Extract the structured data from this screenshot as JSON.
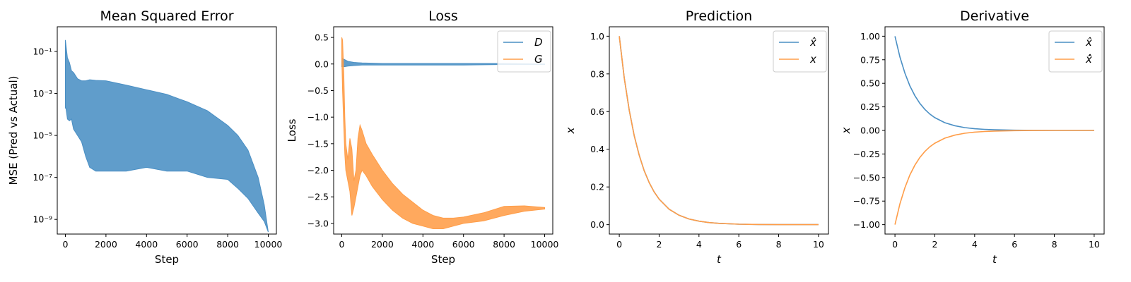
{
  "figure": {
    "colors": {
      "series1": "#4a8fc4",
      "series2": "#ff9d48"
    }
  },
  "chart_data": [
    {
      "id": "mse",
      "type": "line",
      "title": "Mean Squared Error",
      "xlabel": "Step",
      "ylabel": "MSE (Pred vs Actual)",
      "xlim": [
        -400,
        10400
      ],
      "ylim": [
        2e-10,
        1.5
      ],
      "yscale": "log",
      "xticks": [
        0,
        2000,
        4000,
        6000,
        8000,
        10000
      ],
      "xtick_labels": [
        "0",
        "2000",
        "4000",
        "6000",
        "8000",
        "10000"
      ],
      "yticks": [
        1e-09,
        1e-07,
        1e-05,
        0.001,
        0.1
      ],
      "ytick_labels": [
        "10⁻⁹",
        "10⁻⁷",
        "10⁻⁵",
        "10⁻³",
        "10⁻¹"
      ],
      "legend": null,
      "series": [
        {
          "color": "#4a8fc4",
          "style": "band",
          "x": [
            0,
            30,
            100,
            200,
            300,
            400,
            600,
            800,
            1000,
            1200,
            1500,
            2000,
            3000,
            4000,
            5000,
            6000,
            7000,
            8000,
            8500,
            9000,
            9500,
            9800,
            10000
          ],
          "upper": [
            0.35,
            0.2,
            0.05,
            0.03,
            0.012,
            0.01,
            0.005,
            0.004,
            0.004,
            0.0045,
            0.0042,
            0.004,
            0.0025,
            0.0015,
            0.0009,
            0.0004,
            0.00015,
            3e-05,
            1e-05,
            2e-06,
            1e-07,
            5e-09,
            2.5e-10
          ],
          "lower": [
            0.0002,
            0.0002,
            6e-05,
            5e-05,
            6e-05,
            2e-05,
            1e-05,
            5e-06,
            1e-06,
            3e-07,
            2e-07,
            2e-07,
            2e-07,
            3e-07,
            2e-07,
            2e-07,
            1e-07,
            8e-08,
            3e-08,
            1e-08,
            2e-09,
            8e-10,
            2.5e-10
          ]
        }
      ]
    },
    {
      "id": "loss",
      "type": "line",
      "title": "Loss",
      "xlabel": "Step",
      "ylabel": "Loss",
      "xlim": [
        -400,
        10400
      ],
      "ylim": [
        -3.2,
        0.7
      ],
      "yscale": "linear",
      "xticks": [
        0,
        2000,
        4000,
        6000,
        8000,
        10000
      ],
      "xtick_labels": [
        "0",
        "2000",
        "4000",
        "6000",
        "8000",
        "10000"
      ],
      "yticks": [
        -3.0,
        -2.5,
        -2.0,
        -1.5,
        -1.0,
        -0.5,
        0.0,
        0.5
      ],
      "ytick_labels": [
        "−3.0",
        "−2.5",
        "−2.0",
        "−1.5",
        "−1.0",
        "−0.5",
        "0.0",
        "0.5"
      ],
      "legend": "top-right",
      "series": [
        {
          "name": "D",
          "color": "#4a8fc4",
          "style": "band",
          "x": [
            0,
            50,
            150,
            300,
            600,
            1000,
            2000,
            4000,
            6000,
            8000,
            10000
          ],
          "upper": [
            0.12,
            0.1,
            0.08,
            0.05,
            0.03,
            0.02,
            0.01,
            0.01,
            0.01,
            0.01,
            0.0
          ],
          "lower": [
            -0.05,
            -0.05,
            -0.05,
            -0.04,
            -0.03,
            -0.02,
            -0.02,
            -0.02,
            -0.02,
            -0.01,
            -0.01
          ]
        },
        {
          "name": "G",
          "color": "#ff9d48",
          "style": "band",
          "x": [
            0,
            40,
            100,
            150,
            200,
            300,
            400,
            500,
            600,
            700,
            800,
            900,
            1000,
            1200,
            1500,
            2000,
            2500,
            3000,
            3500,
            4000,
            4500,
            5000,
            5500,
            6000,
            7000,
            8000,
            9000,
            10000
          ],
          "upper": [
            0.5,
            0.45,
            -0.2,
            -1.0,
            -1.5,
            -1.8,
            -1.4,
            -1.6,
            -2.2,
            -2.0,
            -1.4,
            -1.15,
            -1.25,
            -1.5,
            -1.7,
            -2.0,
            -2.25,
            -2.45,
            -2.6,
            -2.75,
            -2.85,
            -2.9,
            -2.9,
            -2.88,
            -2.8,
            -2.68,
            -2.67,
            -2.7
          ],
          "lower": [
            0.1,
            -0.5,
            -1.2,
            -1.7,
            -2.0,
            -2.2,
            -2.4,
            -2.85,
            -2.7,
            -2.5,
            -2.3,
            -2.1,
            -2.0,
            -2.1,
            -2.3,
            -2.55,
            -2.75,
            -2.9,
            -3.0,
            -3.05,
            -3.1,
            -3.1,
            -3.05,
            -3.0,
            -2.95,
            -2.85,
            -2.77,
            -2.73
          ]
        }
      ]
    },
    {
      "id": "prediction",
      "type": "line",
      "title": "Prediction",
      "xlabel": "t",
      "ylabel": "x",
      "xlim": [
        -0.5,
        10.5
      ],
      "ylim": [
        -0.05,
        1.05
      ],
      "yscale": "linear",
      "xticks": [
        0,
        2,
        4,
        6,
        8,
        10
      ],
      "xtick_labels": [
        "0",
        "2",
        "4",
        "6",
        "8",
        "10"
      ],
      "yticks": [
        0.0,
        0.2,
        0.4,
        0.6,
        0.8,
        1.0
      ],
      "ytick_labels": [
        "0.0",
        "0.2",
        "0.4",
        "0.6",
        "0.8",
        "1.0"
      ],
      "legend": "top-right",
      "series": [
        {
          "name": "x̂",
          "color": "#4a8fc4",
          "x": [
            0,
            0.25,
            0.5,
            0.75,
            1,
            1.25,
            1.5,
            1.75,
            2,
            2.5,
            3,
            3.5,
            4,
            4.5,
            5,
            6,
            7,
            8,
            9,
            10
          ],
          "y": [
            1.0,
            0.7788,
            0.6065,
            0.4724,
            0.3679,
            0.2865,
            0.2231,
            0.1738,
            0.1353,
            0.0821,
            0.0498,
            0.0302,
            0.0183,
            0.0111,
            0.0067,
            0.0025,
            0.0009,
            0.0003,
            0.0001,
            0.0
          ]
        },
        {
          "name": "x",
          "color": "#ff9d48",
          "x": [
            0,
            0.25,
            0.5,
            0.75,
            1,
            1.25,
            1.5,
            1.75,
            2,
            2.5,
            3,
            3.5,
            4,
            4.5,
            5,
            6,
            7,
            8,
            9,
            10
          ],
          "y": [
            1.0,
            0.7788,
            0.6065,
            0.4724,
            0.3679,
            0.2865,
            0.2231,
            0.1738,
            0.1353,
            0.0821,
            0.0498,
            0.0302,
            0.0183,
            0.0111,
            0.0067,
            0.0025,
            0.0009,
            0.0003,
            0.0001,
            0.0
          ]
        }
      ]
    },
    {
      "id": "derivative",
      "type": "line",
      "title": "Derivative",
      "xlabel": "t",
      "ylabel": "x",
      "xlim": [
        -0.5,
        10.5
      ],
      "ylim": [
        -1.1,
        1.1
      ],
      "yscale": "linear",
      "xticks": [
        0,
        2,
        4,
        6,
        8,
        10
      ],
      "xtick_labels": [
        "0",
        "2",
        "4",
        "6",
        "8",
        "10"
      ],
      "yticks": [
        -1.0,
        -0.75,
        -0.5,
        -0.25,
        0.0,
        0.25,
        0.5,
        0.75,
        1.0
      ],
      "ytick_labels": [
        "−1.00",
        "−0.75",
        "−0.50",
        "−0.25",
        "0.00",
        "0.25",
        "0.50",
        "0.75",
        "1.00"
      ],
      "legend": "top-right",
      "series": [
        {
          "name": "x̂",
          "color": "#4a8fc4",
          "x": [
            0,
            0.25,
            0.5,
            0.75,
            1,
            1.25,
            1.5,
            1.75,
            2,
            2.5,
            3,
            3.5,
            4,
            4.5,
            5,
            6,
            7,
            8,
            9,
            10
          ],
          "y": [
            1.0,
            0.7788,
            0.6065,
            0.4724,
            0.3679,
            0.2865,
            0.2231,
            0.1738,
            0.1353,
            0.0821,
            0.0498,
            0.0302,
            0.0183,
            0.0111,
            0.0067,
            0.0025,
            0.0009,
            0.0003,
            0.0001,
            0.0
          ]
        },
        {
          "name": "x̂̇",
          "color": "#ff9d48",
          "x": [
            0,
            0.25,
            0.5,
            0.75,
            1,
            1.25,
            1.5,
            1.75,
            2,
            2.5,
            3,
            3.5,
            4,
            4.5,
            5,
            6,
            7,
            8,
            9,
            10
          ],
          "y": [
            -1.0,
            -0.7788,
            -0.6065,
            -0.4724,
            -0.3679,
            -0.2865,
            -0.2231,
            -0.1738,
            -0.1353,
            -0.0821,
            -0.0498,
            -0.0302,
            -0.0183,
            -0.0111,
            -0.0067,
            -0.0025,
            -0.0009,
            -0.0003,
            -0.0001,
            0.0
          ]
        }
      ]
    }
  ]
}
